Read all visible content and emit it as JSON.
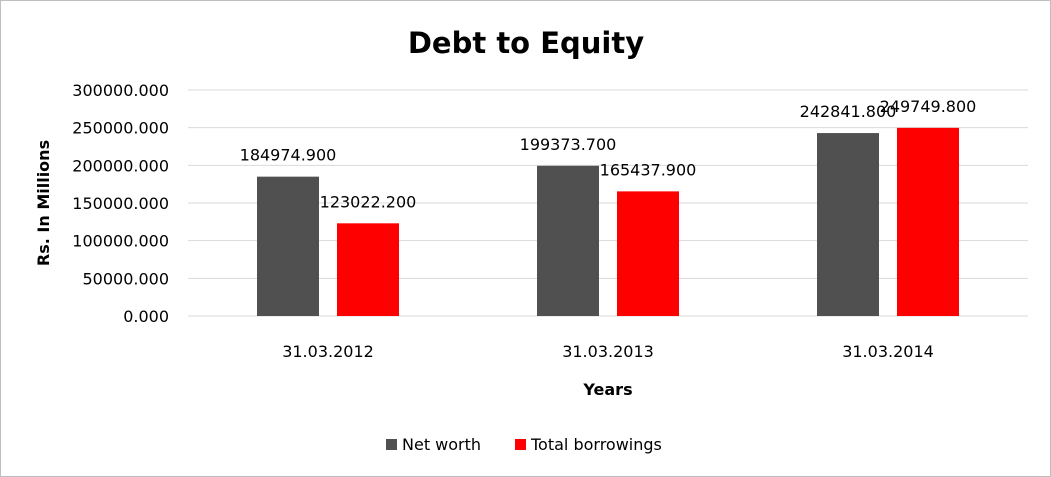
{
  "chart_data": {
    "type": "bar",
    "title": "Debt to Equity",
    "xlabel": "Years",
    "ylabel": "Rs. In Millions",
    "categories": [
      "31.03.2012",
      "31.03.2013",
      "31.03.2014"
    ],
    "series": [
      {
        "name": "Net worth",
        "color": "#505050",
        "values": [
          184974.9,
          199373.7,
          242841.8
        ],
        "labels": [
          "184974.900",
          "199373.700",
          "242841.800"
        ]
      },
      {
        "name": "Total borrowings",
        "color": "#ff0000",
        "values": [
          123022.2,
          165437.9,
          249749.8
        ],
        "labels": [
          "123022.200",
          "165437.900",
          "249749.800"
        ]
      }
    ],
    "ylim": [
      0,
      300000
    ],
    "yticks": [
      "0.000",
      "50000.000",
      "100000.000",
      "150000.000",
      "200000.000",
      "250000.000",
      "300000.000"
    ],
    "grid": true,
    "legend": "bottom"
  }
}
